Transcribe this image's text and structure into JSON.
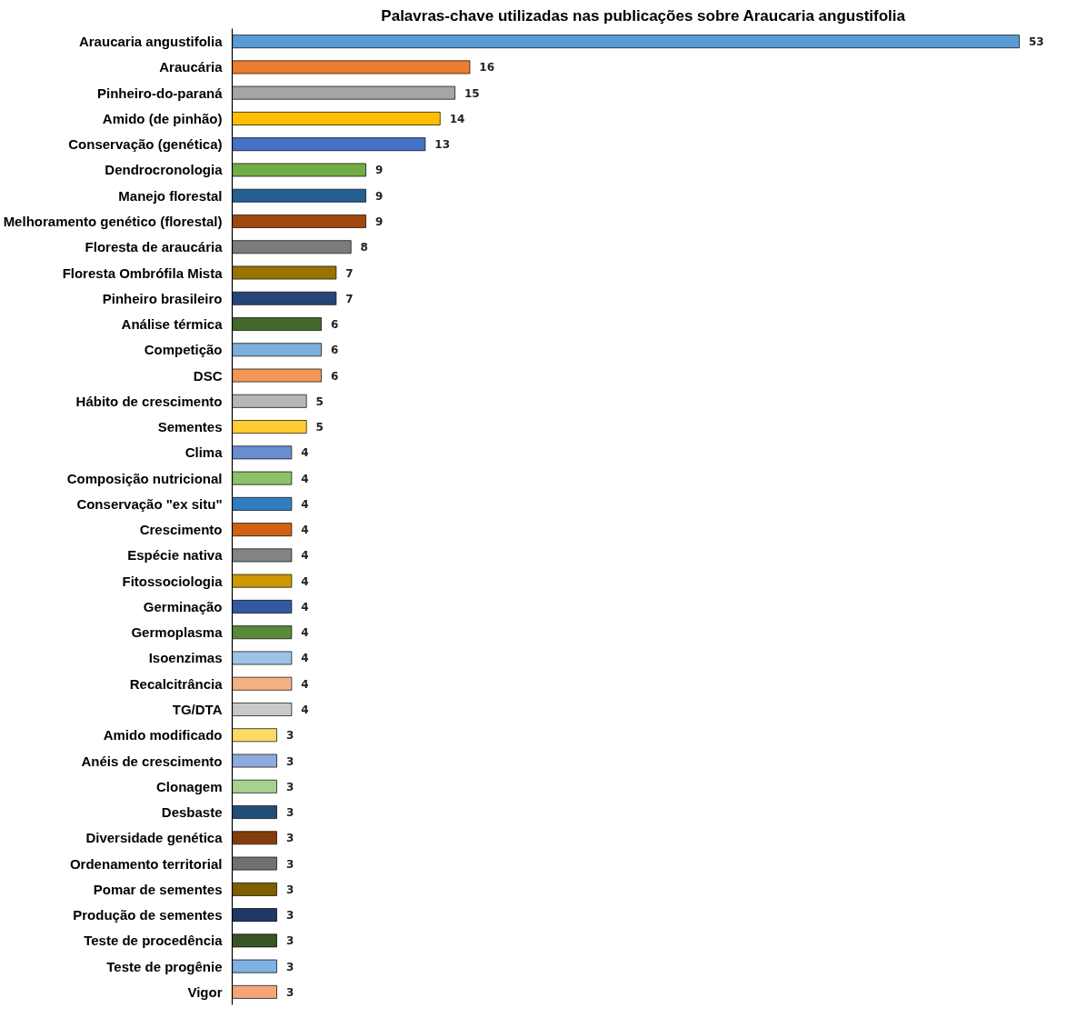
{
  "chart_data": {
    "type": "bar",
    "orientation": "horizontal",
    "title": "Palavras-chave utilizadas nas publicações sobre Araucaria angustifolia",
    "categories": [
      "Araucaria angustifolia",
      "Araucária",
      "Pinheiro-do-paraná",
      "Amido (de pinhão)",
      "Conservação (genética)",
      "Dendrocronologia",
      "Manejo florestal",
      "Melhoramento genético (florestal)",
      "Floresta de araucária",
      "Floresta Ombrófila Mista",
      "Pinheiro brasileiro",
      "Análise térmica",
      "Competição",
      "DSC",
      "Hábito de crescimento",
      "Sementes",
      "Clima",
      "Composição nutricional",
      "Conservação \"ex situ\"",
      "Crescimento",
      "Espécie nativa",
      "Fitossociologia",
      "Germinação",
      "Germoplasma",
      "Isoenzimas",
      "Recalcitrância",
      "TG/DTA",
      "Amido modificado",
      "Anéis de crescimento",
      "Clonagem",
      "Desbaste",
      "Diversidade genética",
      "Ordenamento territorial",
      "Pomar de sementes",
      "Produção de sementes",
      "Teste de procedência",
      "Teste de progênie",
      "Vigor"
    ],
    "values": [
      53,
      16,
      15,
      14,
      13,
      9,
      9,
      9,
      8,
      7,
      7,
      6,
      6,
      6,
      5,
      5,
      4,
      4,
      4,
      4,
      4,
      4,
      4,
      4,
      4,
      4,
      4,
      3,
      3,
      3,
      3,
      3,
      3,
      3,
      3,
      3,
      3,
      3
    ],
    "colors": [
      "#5b9bd5",
      "#ed7d31",
      "#a5a5a5",
      "#ffc000",
      "#4472c4",
      "#70ad47",
      "#255e91",
      "#9e480e",
      "#7c7c7c",
      "#997300",
      "#264478",
      "#43682b",
      "#7cafdd",
      "#f1975a",
      "#b7b7b7",
      "#ffcd33",
      "#698ed0",
      "#8cc168",
      "#327dc2",
      "#d26012",
      "#848484",
      "#cc9a00",
      "#335aa1",
      "#5a8a39",
      "#9dc3e6",
      "#f4b183",
      "#c9c9c9",
      "#ffd966",
      "#8faadc",
      "#a9d18e",
      "#1f4e79",
      "#843c0c",
      "#707070",
      "#7f6000",
      "#203864",
      "#375623",
      "#7fb2e0",
      "#f4a67a"
    ],
    "data_labels": true,
    "grid": false
  }
}
